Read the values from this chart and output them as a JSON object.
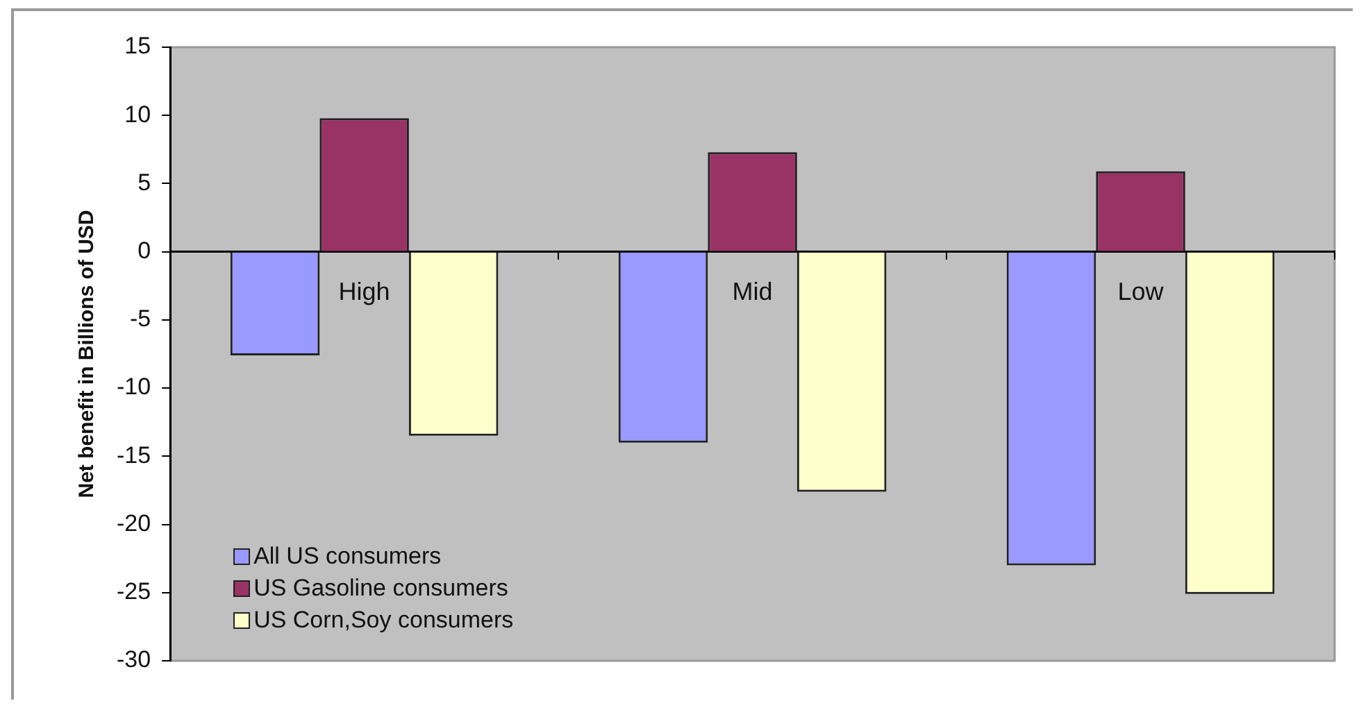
{
  "chart_data": {
    "type": "bar",
    "ylabel": "Net benefit in Billions of USD",
    "categories": [
      "High",
      "Mid",
      "Low"
    ],
    "series": [
      {
        "name": "All US consumers",
        "color": "#9999ff",
        "values": [
          -7.6,
          -14.0,
          -23.0
        ]
      },
      {
        "name": "US Gasoline consumers",
        "color": "#993366",
        "values": [
          9.8,
          7.3,
          5.9
        ]
      },
      {
        "name": "US Corn,Soy consumers",
        "color": "#ffffcc",
        "values": [
          -13.5,
          -17.6,
          -25.1
        ]
      }
    ],
    "ylim": [
      -30,
      15
    ],
    "yticks": [
      -30,
      -25,
      -20,
      -15,
      -10,
      -5,
      0,
      5,
      10,
      15
    ],
    "grid": false,
    "legend": "bottom left"
  }
}
